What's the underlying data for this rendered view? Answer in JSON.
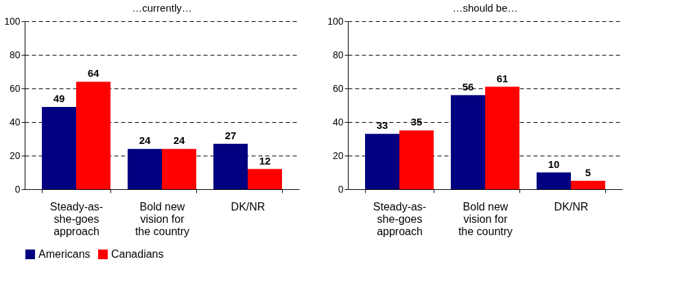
{
  "chart_data": [
    {
      "type": "bar",
      "title": "…currently…",
      "categories": [
        "Steady-as-she-goes approach",
        "Bold new vision for the country",
        "DK/NR"
      ],
      "series": [
        {
          "name": "Americans",
          "color": "#000080",
          "values": [
            49,
            24,
            27
          ]
        },
        {
          "name": "Canadians",
          "color": "#ff0000",
          "values": [
            64,
            24,
            12
          ]
        }
      ],
      "ylim": [
        0,
        100
      ],
      "yticks": [
        0,
        20,
        40,
        60,
        80,
        100
      ],
      "grid": "y",
      "data_labels": true,
      "legend": "bottom"
    },
    {
      "type": "bar",
      "title": "…should be…",
      "categories": [
        "Steady-as-she-goes approach",
        "Bold new vision for the country",
        "DK/NR"
      ],
      "series": [
        {
          "name": "Americans",
          "color": "#000080",
          "values": [
            33,
            56,
            10
          ]
        },
        {
          "name": "Canadians",
          "color": "#ff0000",
          "values": [
            35,
            61,
            5
          ]
        }
      ],
      "ylim": [
        0,
        100
      ],
      "yticks": [
        0,
        20,
        40,
        60,
        80,
        100
      ],
      "grid": "y",
      "data_labels": true,
      "legend": "bottom"
    }
  ]
}
